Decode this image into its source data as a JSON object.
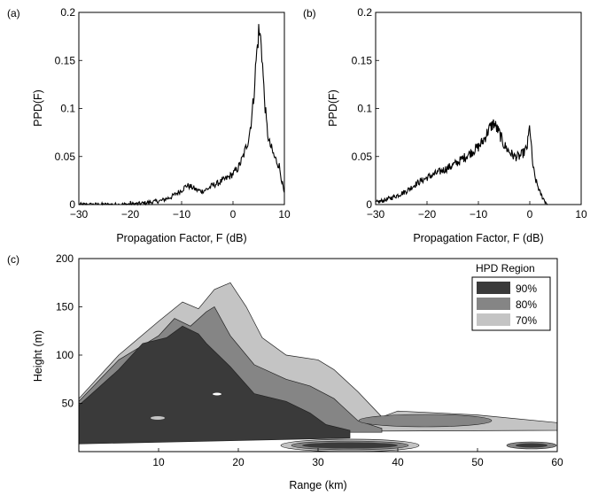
{
  "chart_data": [
    {
      "panel": "(a)",
      "type": "line",
      "xlabel": "Propagation Factor, F (dB)",
      "ylabel": "PPD(F)",
      "xlim": [
        -30,
        10
      ],
      "ylim": [
        0,
        0.2
      ],
      "xticks": [
        "−30",
        "−20",
        "−10",
        "0",
        "10"
      ],
      "yticks": [
        "0",
        "0.05",
        "0.1",
        "0.15",
        "0.2"
      ],
      "grid": false,
      "series": [
        {
          "x": [
            -30,
            -22,
            -18,
            -14,
            -12,
            -10,
            -9,
            -8,
            -7,
            -6,
            -5,
            -4,
            -3,
            -2,
            -1,
            0,
            1,
            2,
            3,
            3.5,
            4,
            4.5,
            5,
            5.5,
            6,
            6.5,
            7,
            7.5,
            8,
            8.5,
            9,
            9.5,
            10
          ],
          "y": [
            0,
            0,
            0.001,
            0.004,
            0.008,
            0.015,
            0.02,
            0.018,
            0.015,
            0.014,
            0.016,
            0.02,
            0.022,
            0.025,
            0.028,
            0.032,
            0.038,
            0.05,
            0.068,
            0.085,
            0.11,
            0.15,
            0.18,
            0.17,
            0.12,
            0.085,
            0.065,
            0.058,
            0.05,
            0.045,
            0.04,
            0.025,
            0.01
          ]
        }
      ]
    },
    {
      "panel": "(b)",
      "type": "line",
      "xlabel": "Propagation Factor, F (dB)",
      "ylabel": "PPD(F)",
      "xlim": [
        -30,
        10
      ],
      "ylim": [
        0,
        0.2
      ],
      "xticks": [
        "−30",
        "−20",
        "−10",
        "0",
        "10"
      ],
      "yticks": [
        "0",
        "0.05",
        "0.1",
        "0.15",
        "0.2"
      ],
      "grid": false,
      "series": [
        {
          "x": [
            -30,
            -28,
            -26,
            -24,
            -22,
            -20,
            -18,
            -16,
            -14,
            -12,
            -10,
            -9,
            -8,
            -7,
            -6,
            -5,
            -4,
            -3,
            -2,
            -1,
            -0.5,
            0,
            0.5,
            1,
            2,
            3,
            3.5
          ],
          "y": [
            0.002,
            0.005,
            0.009,
            0.014,
            0.022,
            0.028,
            0.033,
            0.038,
            0.044,
            0.052,
            0.06,
            0.067,
            0.078,
            0.085,
            0.075,
            0.062,
            0.055,
            0.05,
            0.05,
            0.055,
            0.06,
            0.082,
            0.045,
            0.028,
            0.012,
            0.003,
            0
          ]
        }
      ]
    },
    {
      "panel": "(c)",
      "type": "area",
      "title": "",
      "xlabel": "Range (km)",
      "ylabel": "Height (m)",
      "xlim": [
        0,
        60
      ],
      "ylim": [
        0,
        200
      ],
      "xticks": [
        "10",
        "20",
        "30",
        "40",
        "50",
        "60"
      ],
      "yticks": [
        "50",
        "100",
        "150",
        "200"
      ],
      "grid": false,
      "legend": {
        "title": "HPD Region",
        "placement": "top-right",
        "entries": [
          {
            "label": "90%",
            "color": "#3a3a3a"
          },
          {
            "label": "80%",
            "color": "#858585"
          },
          {
            "label": "70%",
            "color": "#c4c4c4"
          }
        ]
      },
      "regions": [
        {
          "name": "70%",
          "color": "#c4c4c4",
          "upper": [
            [
              0,
              55
            ],
            [
              5,
              100
            ],
            [
              10,
              135
            ],
            [
              13,
              155
            ],
            [
              15,
              148
            ],
            [
              17,
              168
            ],
            [
              19,
              175
            ],
            [
              21,
              150
            ],
            [
              23,
              118
            ],
            [
              26,
              100
            ],
            [
              30,
              95
            ],
            [
              32,
              85
            ],
            [
              35,
              62
            ],
            [
              38,
              36
            ],
            [
              40,
              42
            ],
            [
              50,
              38
            ],
            [
              60,
              30
            ]
          ],
          "lower": [
            [
              0,
              20
            ],
            [
              60,
              22
            ]
          ]
        },
        {
          "name": "80%",
          "color": "#858585",
          "upper": [
            [
              0,
              52
            ],
            [
              5,
              95
            ],
            [
              10,
              120
            ],
            [
              12,
              138
            ],
            [
              14,
              130
            ],
            [
              16,
              145
            ],
            [
              17,
              150
            ],
            [
              19,
              120
            ],
            [
              22,
              90
            ],
            [
              26,
              75
            ],
            [
              29,
              68
            ],
            [
              32,
              55
            ],
            [
              35,
              32
            ],
            [
              38,
              24
            ]
          ],
          "lower": [
            [
              0,
              20
            ],
            [
              38,
              20
            ]
          ]
        },
        {
          "name": "90%",
          "color": "#3a3a3a",
          "upper": [
            [
              0,
              48
            ],
            [
              5,
              85
            ],
            [
              8,
              112
            ],
            [
              11,
              118
            ],
            [
              13,
              130
            ],
            [
              15,
              122
            ],
            [
              16,
              112
            ],
            [
              19,
              88
            ],
            [
              22,
              60
            ],
            [
              26,
              52
            ],
            [
              29,
              40
            ],
            [
              31,
              28
            ],
            [
              34,
              22
            ]
          ],
          "lower": [
            [
              0,
              8
            ],
            [
              34,
              14
            ]
          ]
        }
      ]
    }
  ]
}
